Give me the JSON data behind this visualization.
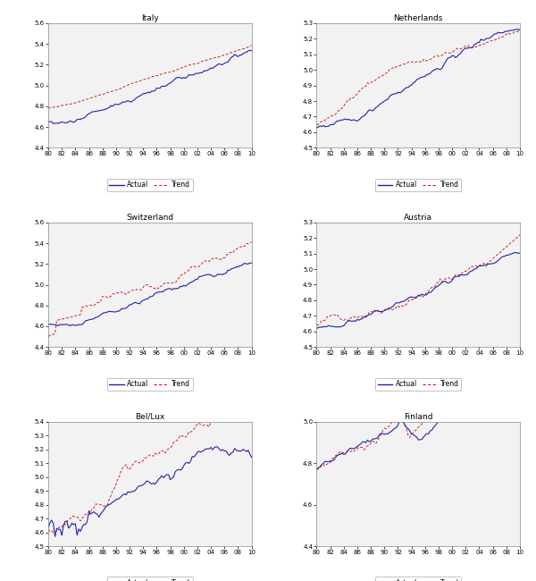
{
  "panels": [
    {
      "title": "Italy",
      "ylim": [
        4.4,
        5.6
      ],
      "yticks": [
        4.4,
        4.6,
        4.8,
        5.0,
        5.2,
        5.4,
        5.6
      ]
    },
    {
      "title": "Netherlands",
      "ylim": [
        4.5,
        5.3
      ],
      "yticks": [
        4.5,
        4.6,
        4.7,
        4.8,
        4.9,
        5.0,
        5.1,
        5.2,
        5.3
      ]
    },
    {
      "title": "Switzerland",
      "ylim": [
        4.4,
        5.6
      ],
      "yticks": [
        4.4,
        4.6,
        4.8,
        5.0,
        5.2,
        5.4,
        5.6
      ]
    },
    {
      "title": "Austria",
      "ylim": [
        4.5,
        5.3
      ],
      "yticks": [
        4.5,
        4.6,
        4.7,
        4.8,
        4.9,
        5.0,
        5.1,
        5.2,
        5.3
      ]
    },
    {
      "title": "Bel/Lux",
      "ylim": [
        4.5,
        5.4
      ],
      "yticks": [
        4.5,
        4.6,
        4.7,
        4.8,
        4.9,
        5.0,
        5.1,
        5.2,
        5.3,
        5.4
      ]
    },
    {
      "title": "Finland",
      "ylim": [
        4.4,
        5.0
      ],
      "yticks": [
        4.4,
        4.6,
        4.8,
        5.0
      ]
    }
  ],
  "xtick_labels": [
    "80",
    "82",
    "84",
    "86",
    "88",
    "90",
    "92",
    "94",
    "96",
    "98",
    "00",
    "02",
    "04",
    "06",
    "08",
    "10"
  ],
  "actual_color": "#2222aa",
  "trend_color": "#cc2222",
  "actual_lw": 0.8,
  "trend_lw": 0.7,
  "figure_facecolor": "#ffffff",
  "axes_facecolor": "#f2f2f2"
}
